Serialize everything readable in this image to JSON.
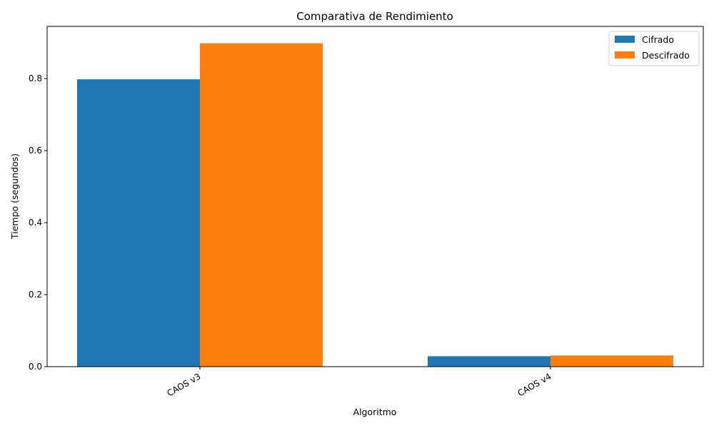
{
  "chart_data": {
    "type": "bar",
    "title": "Comparativa de Rendimiento",
    "xlabel": "Algoritmo",
    "ylabel": "Tiempo (segundos)",
    "categories": [
      "CAOS v3",
      "CAOS v4"
    ],
    "series": [
      {
        "name": "Cifrado",
        "color": "#1f77b4",
        "values": [
          0.798,
          0.029
        ]
      },
      {
        "name": "Descifrado",
        "color": "#ff7f0e",
        "values": [
          0.898,
          0.031
        ]
      }
    ],
    "ylim": [
      0,
      0.945
    ],
    "yticks": [
      "0.0",
      "0.2",
      "0.4",
      "0.6",
      "0.8"
    ],
    "grid": false,
    "legend_position": "top-right"
  }
}
